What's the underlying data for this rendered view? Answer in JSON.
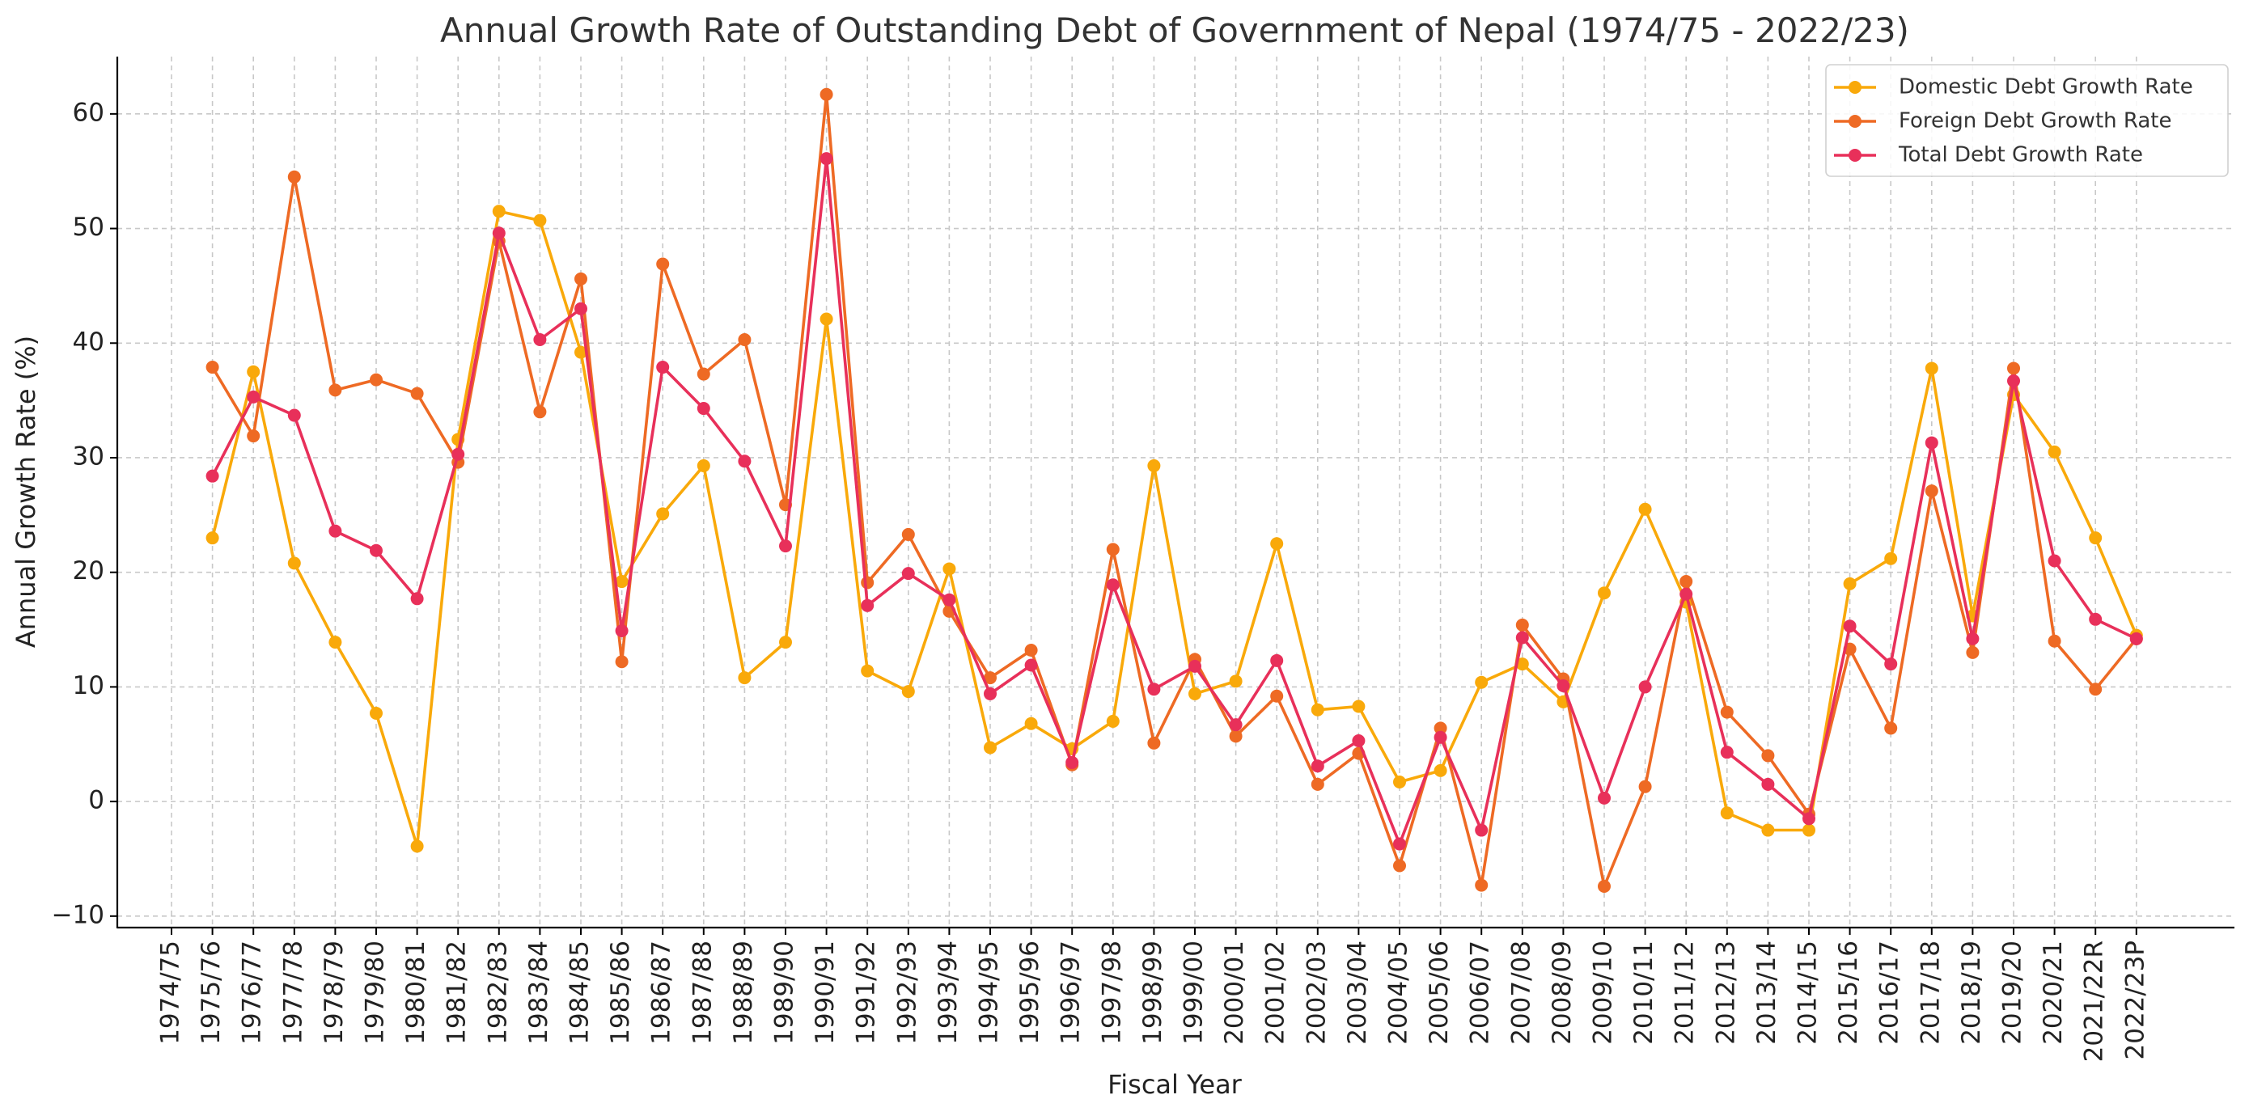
{
  "chart_data": {
    "type": "line",
    "title": "Annual Growth Rate of Outstanding Debt of Government of Nepal (1974/75 - 2022/23)",
    "xlabel": "Fiscal Year",
    "ylabel": "Annual Growth Rate (%)",
    "ylim": [
      -11,
      65
    ],
    "yticks": [
      -10,
      0,
      10,
      20,
      30,
      40,
      50,
      60
    ],
    "ytick_labels": [
      "−10",
      "0",
      "10",
      "20",
      "30",
      "40",
      "50",
      "60"
    ],
    "grid": true,
    "legend_position": "top-right",
    "categories": [
      "1974/75",
      "1975/76",
      "1976/77",
      "1977/78",
      "1978/79",
      "1979/80",
      "1980/81",
      "1981/82",
      "1982/83",
      "1983/84",
      "1984/85",
      "1985/86",
      "1986/87",
      "1987/88",
      "1988/89",
      "1989/90",
      "1990/91",
      "1991/92",
      "1992/93",
      "1993/94",
      "1994/95",
      "1995/96",
      "1996/97",
      "1997/98",
      "1998/99",
      "1999/00",
      "2000/01",
      "2001/02",
      "2002/03",
      "2003/04",
      "2004/05",
      "2005/06",
      "2006/07",
      "2007/08",
      "2008/09",
      "2009/10",
      "2010/11",
      "2011/12",
      "2012/13",
      "2013/14",
      "2014/15",
      "2015/16",
      "2016/17",
      "2017/18",
      "2018/19",
      "2019/20",
      "2020/21",
      "2021/22R",
      "2022/23P"
    ],
    "series": [
      {
        "name": "Domestic Debt Growth Rate",
        "color": "#F9A90A",
        "values": [
          null,
          23.0,
          37.5,
          20.8,
          13.9,
          7.7,
          -3.9,
          31.6,
          51.5,
          50.7,
          39.2,
          19.2,
          25.1,
          29.3,
          10.8,
          13.9,
          42.1,
          11.4,
          9.6,
          20.3,
          4.7,
          6.8,
          4.6,
          7.0,
          29.3,
          9.4,
          10.5,
          22.5,
          8.0,
          8.3,
          1.7,
          2.7,
          10.4,
          12.0,
          8.7,
          18.2,
          25.5,
          17.4,
          -1.0,
          -2.5,
          -2.5,
          19.0,
          21.2,
          37.8,
          16.2,
          35.5,
          30.5,
          23.0,
          14.5
        ]
      },
      {
        "name": "Foreign Debt Growth Rate",
        "color": "#EE6A24",
        "values": [
          null,
          37.9,
          31.9,
          54.5,
          35.9,
          36.8,
          35.6,
          29.6,
          48.9,
          34.0,
          45.6,
          12.2,
          46.9,
          37.3,
          40.3,
          25.9,
          61.7,
          19.1,
          23.3,
          16.6,
          10.8,
          13.2,
          3.2,
          22.0,
          5.1,
          12.4,
          5.7,
          9.2,
          1.5,
          4.2,
          -5.6,
          6.4,
          -7.3,
          15.4,
          10.7,
          -7.4,
          1.3,
          19.2,
          7.8,
          4.0,
          -1.1,
          13.3,
          6.4,
          27.1,
          13.0,
          37.8,
          14.0,
          9.8,
          14.2
        ]
      },
      {
        "name": "Total Debt Growth Rate",
        "color": "#E8305A",
        "values": [
          null,
          28.4,
          35.3,
          33.7,
          23.6,
          21.9,
          17.7,
          30.3,
          49.6,
          40.3,
          43.0,
          14.9,
          37.9,
          34.3,
          29.7,
          22.3,
          56.1,
          17.1,
          19.9,
          17.6,
          9.4,
          11.9,
          3.4,
          18.9,
          9.8,
          11.8,
          6.7,
          12.3,
          3.1,
          5.3,
          -3.7,
          5.6,
          -2.5,
          14.3,
          10.1,
          0.3,
          10.0,
          18.1,
          4.3,
          1.5,
          -1.5,
          15.3,
          12.0,
          31.3,
          14.2,
          36.7,
          21.0,
          15.9,
          14.2
        ]
      }
    ]
  }
}
